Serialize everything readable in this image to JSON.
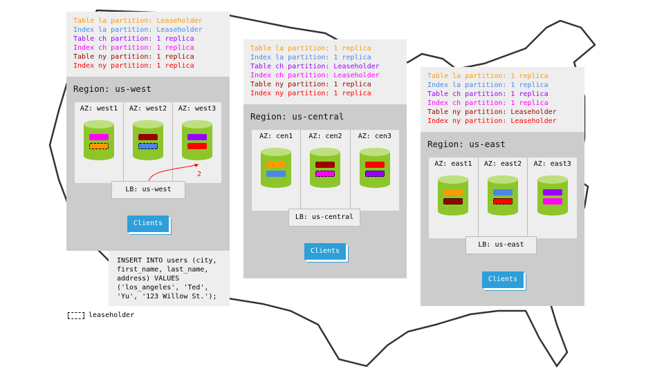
{
  "colors": {
    "la_table": "#ff9900",
    "la_index": "#4a86e8",
    "ch_table": "#9900ff",
    "ch_index": "#ff00ff",
    "ny_table": "#990000",
    "ny_index": "#ff0000",
    "cylinder": "#8cc62a",
    "clients": "#2e9fd9"
  },
  "west": {
    "lines": [
      "Table la partition: Leaseholder",
      "Index la partition: Leaseholder",
      "Table ch partition: 1 replica",
      "Index ch partition: 1 replica",
      "Table ny partition: 1 replica",
      "Index ny partition: 1 replica"
    ],
    "region": "Region: us-west",
    "azs": [
      "AZ: west1",
      "AZ: west2",
      "AZ: west3"
    ],
    "lb": "LB: us-west",
    "clients": "Clients",
    "arrow_label": "2"
  },
  "central": {
    "lines": [
      "Table la partition: 1 replica",
      "Index la partition: 1 replica",
      "Table ch partition: Leaseholder",
      "Index ch partition: Leaseholder",
      "Table ny partition: 1 replica",
      "Index ny partition: 1 replica"
    ],
    "region": "Region: us-central",
    "azs": [
      "AZ: cen1",
      "AZ: cen2",
      "AZ: cen3"
    ],
    "lb": "LB: us-central",
    "clients": "Clients"
  },
  "east": {
    "lines": [
      "Table la partition: 1 replica",
      "Index la partition: 1 replica",
      "Table ch partition: 1 replica",
      "Index ch partition: 1 replica",
      "Table ny partition: Leaseholder",
      "Index ny partition: Leaseholder"
    ],
    "region": "Region: us-east",
    "azs": [
      "AZ: east1",
      "AZ: east2",
      "AZ: east3"
    ],
    "lb": "LB: us-east",
    "clients": "Clients"
  },
  "sql": "INSERT INTO users (city, first_name, last_name, address) VALUES ('los_angeles', 'Ted', 'Yu', '123 Willow St.');",
  "legend": "leaseholder"
}
